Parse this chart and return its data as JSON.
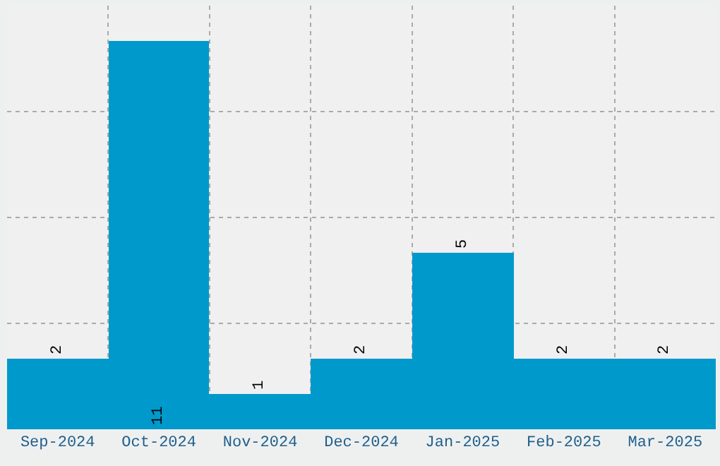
{
  "chart_data": {
    "type": "bar",
    "categories": [
      "Sep-2024",
      "Oct-2024",
      "Nov-2024",
      "Dec-2024",
      "Jan-2025",
      "Feb-2025",
      "Mar-2025"
    ],
    "values": [
      2,
      11,
      1,
      2,
      5,
      2,
      2
    ],
    "color": "#0099cc",
    "data_labels": true,
    "ylim": [
      0,
      12
    ],
    "yticks": [
      {
        "value": 3,
        "label": null
      },
      {
        "value": 6,
        "label": null
      },
      {
        "value": 9,
        "label": null
      }
    ],
    "grid": true,
    "tick_labels": "x"
  }
}
